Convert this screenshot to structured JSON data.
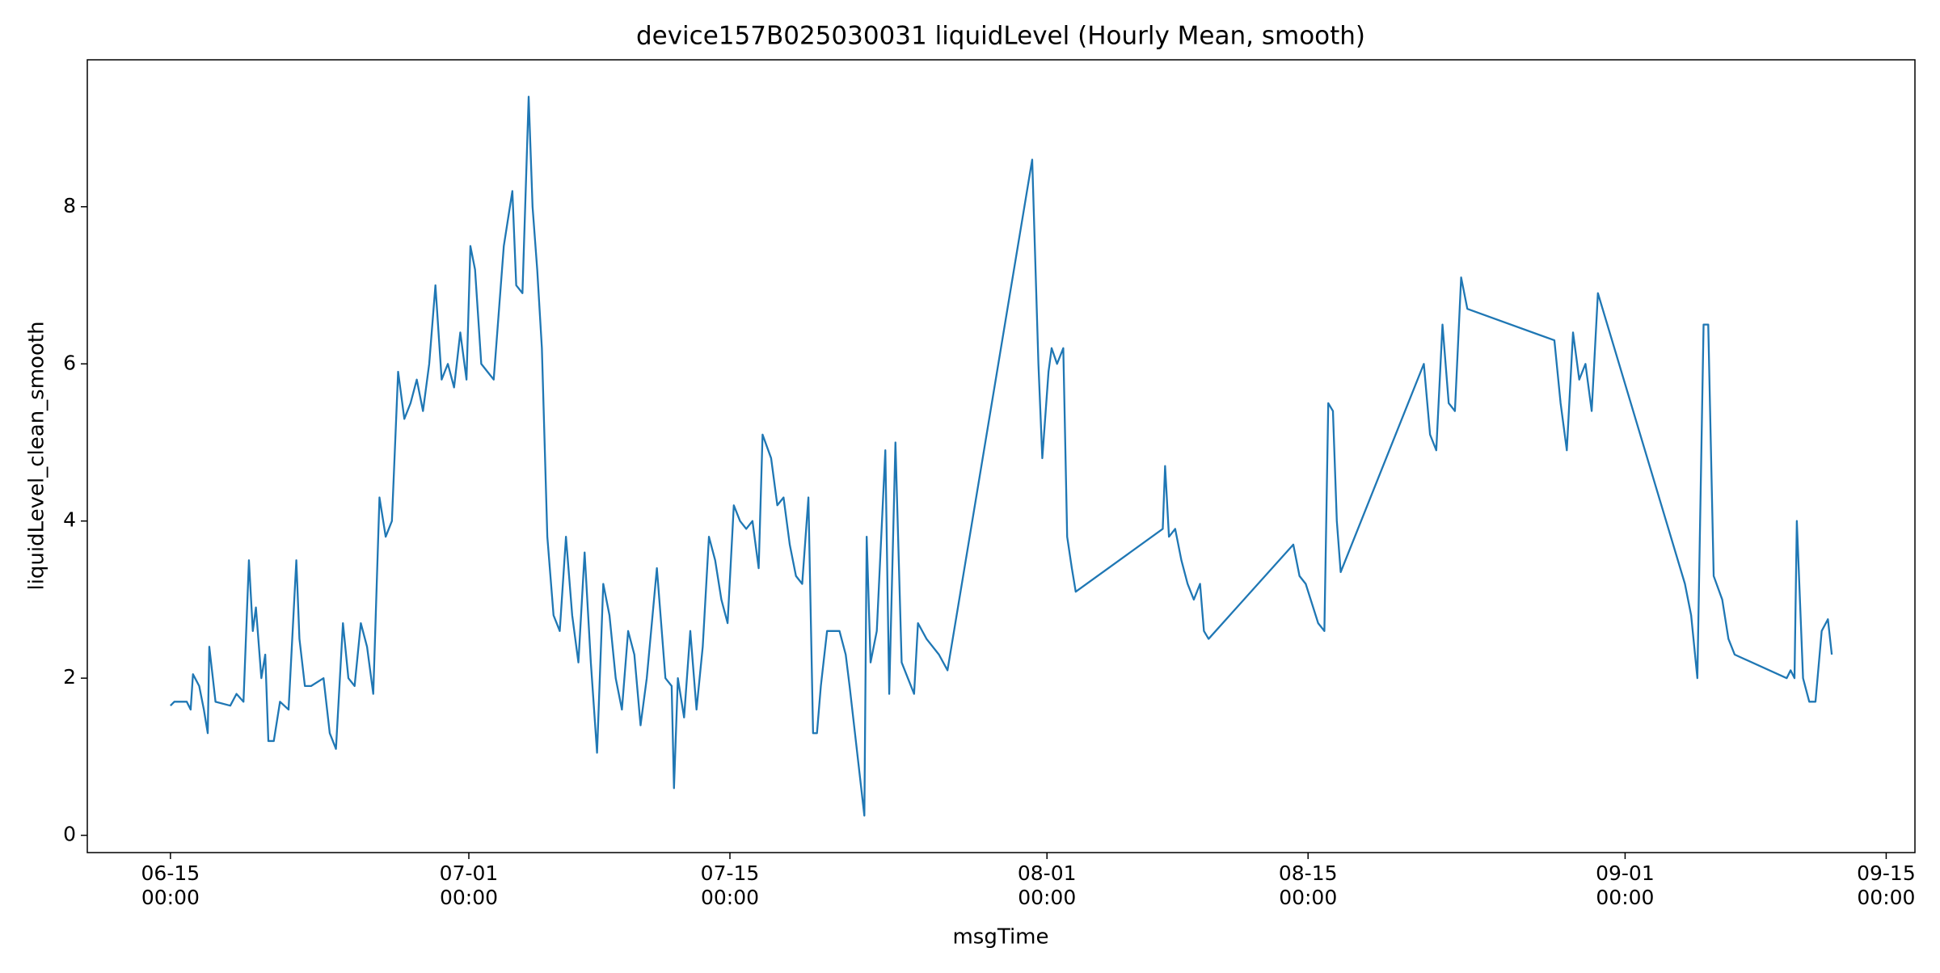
{
  "chart_data": {
    "type": "line",
    "title": "device157B025030031 liquidLevel (Hourly Mean, smooth)",
    "x_label": "msgTime",
    "y_label": "liquidLevel_clean_smooth",
    "color": "#1f77b4",
    "grid": false,
    "xlim": [
      "06-10 13:00",
      "09-16 13:00"
    ],
    "xticks": [
      "06-15 00:00",
      "07-01 00:00",
      "07-15 00:00",
      "08-01 00:00",
      "08-15 00:00",
      "09-01 00:00",
      "09-15 00:00"
    ],
    "ylim": [
      -0.22,
      9.87
    ],
    "yticks": [
      0,
      2,
      4,
      6,
      8
    ],
    "x": [
      "06-15 00:00",
      "06-15 05:00",
      "06-15 21:00",
      "06-16 02:00",
      "06-16 05:00",
      "06-16 13:00",
      "06-16 19:00",
      "06-17 00:00",
      "06-17 02:00",
      "06-17 10:00",
      "06-18 05:00",
      "06-18 13:00",
      "06-18 22:00",
      "06-19 05:00",
      "06-19 10:00",
      "06-19 14:00",
      "06-19 21:00",
      "06-20 02:00",
      "06-20 06:00",
      "06-20 13:00",
      "06-20 21:00",
      "06-21 08:00",
      "06-21 18:00",
      "06-21 22:00",
      "06-22 05:00",
      "06-22 13:00",
      "06-23 05:00",
      "06-23 13:00",
      "06-23 21:00",
      "06-24 06:00",
      "06-24 13:00",
      "06-24 21:00",
      "06-25 05:00",
      "06-25 13:00",
      "06-25 21:00",
      "06-26 05:00",
      "06-26 13:00",
      "06-26 21:00",
      "06-27 05:00",
      "06-27 13:00",
      "06-27 21:00",
      "06-28 05:00",
      "06-28 13:00",
      "06-28 21:00",
      "06-29 05:00",
      "06-29 13:00",
      "06-29 21:00",
      "06-30 05:00",
      "06-30 13:00",
      "06-30 21:00",
      "07-01 02:00",
      "07-01 08:00",
      "07-01 16:00",
      "07-02 00:00",
      "07-02 08:00",
      "07-02 21:00",
      "07-03 08:00",
      "07-03 13:00",
      "07-03 21:00",
      "07-04 05:00",
      "07-04 10:00",
      "07-04 16:00",
      "07-04 22:00",
      "07-05 05:00",
      "07-05 13:00",
      "07-05 21:00",
      "07-06 05:00",
      "07-06 13:00",
      "07-06 21:00",
      "07-07 05:00",
      "07-07 13:00",
      "07-07 21:00",
      "07-08 05:00",
      "07-08 13:00",
      "07-08 21:00",
      "07-09 05:00",
      "07-09 13:00",
      "07-09 21:00",
      "07-10 05:00",
      "07-10 13:00",
      "07-11 02:00",
      "07-11 13:00",
      "07-11 21:00",
      "07-12 00:00",
      "07-12 05:00",
      "07-12 13:00",
      "07-12 21:00",
      "07-13 05:00",
      "07-13 13:00",
      "07-13 21:00",
      "07-14 05:00",
      "07-14 13:00",
      "07-14 21:00",
      "07-15 05:00",
      "07-15 13:00",
      "07-15 21:00",
      "07-16 05:00",
      "07-16 13:00",
      "07-16 18:00",
      "07-17 05:00",
      "07-17 13:00",
      "07-17 21:00",
      "07-18 05:00",
      "07-18 13:00",
      "07-18 21:00",
      "07-19 05:00",
      "07-19 11:00",
      "07-19 16:00",
      "07-19 21:00",
      "07-20 05:00",
      "07-20 21:00",
      "07-21 05:00",
      "07-21 10:00",
      "07-22 05:00",
      "07-22 08:00",
      "07-22 13:00",
      "07-22 21:00",
      "07-23 08:00",
      "07-23 13:00",
      "07-23 21:00",
      "07-24 05:00",
      "07-24 13:00",
      "07-24 21:00",
      "07-25 02:00",
      "07-25 13:00",
      "07-26 05:00",
      "07-26 16:00",
      "07-31 05:00",
      "07-31 13:00",
      "07-31 18:00",
      "08-01 02:00",
      "08-01 06:00",
      "08-01 13:00",
      "08-01 21:00",
      "08-02 02:00",
      "08-02 08:00",
      "08-02 13:00",
      "08-07 05:00",
      "08-07 08:00",
      "08-07 13:00",
      "08-07 21:00",
      "08-08 05:00",
      "08-08 13:00",
      "08-08 21:00",
      "08-09 05:00",
      "08-09 10:00",
      "08-09 16:00",
      "08-14 05:00",
      "08-14 13:00",
      "08-14 21:00",
      "08-15 13:00",
      "08-15 21:00",
      "08-16 02:00",
      "08-16 08:00",
      "08-16 13:00",
      "08-16 18:00",
      "08-21 05:00",
      "08-21 13:00",
      "08-21 21:00",
      "08-22 05:00",
      "08-22 13:00",
      "08-22 21:00",
      "08-23 05:00",
      "08-23 13:00",
      "08-28 05:00",
      "08-28 13:00",
      "08-28 21:00",
      "08-29 05:00",
      "08-29 13:00",
      "08-29 21:00",
      "08-30 05:00",
      "08-30 13:00",
      "09-04 05:00",
      "09-04 13:00",
      "09-04 21:00",
      "09-05 05:00",
      "09-05 11:00",
      "09-05 18:00",
      "09-06 05:00",
      "09-06 13:00",
      "09-06 21:00",
      "09-09 16:00",
      "09-09 21:00",
      "09-10 02:00",
      "09-10 05:00",
      "09-10 13:00",
      "09-10 21:00",
      "09-11 05:00",
      "09-11 13:00",
      "09-11 21:00",
      "09-12 02:00"
    ],
    "values": [
      1.65,
      1.7,
      1.7,
      1.6,
      2.05,
      1.9,
      1.6,
      1.3,
      2.4,
      1.7,
      1.65,
      1.8,
      1.7,
      3.5,
      2.6,
      2.9,
      2.0,
      2.3,
      1.2,
      1.2,
      1.7,
      1.6,
      3.5,
      2.5,
      1.9,
      1.9,
      2.0,
      1.3,
      1.1,
      2.7,
      2.0,
      1.9,
      2.7,
      2.4,
      1.8,
      4.3,
      3.8,
      4.0,
      5.9,
      5.3,
      5.5,
      5.8,
      5.4,
      6.0,
      7.0,
      5.8,
      6.0,
      5.7,
      6.4,
      5.8,
      7.5,
      7.2,
      6.0,
      5.9,
      5.8,
      7.5,
      8.2,
      7.0,
      6.9,
      9.4,
      8.0,
      7.2,
      6.2,
      3.8,
      2.8,
      2.6,
      3.8,
      2.8,
      2.2,
      3.6,
      2.2,
      1.05,
      3.2,
      2.8,
      2.0,
      1.6,
      2.6,
      2.3,
      1.4,
      2.0,
      3.4,
      2.0,
      1.9,
      0.6,
      2.0,
      1.5,
      2.6,
      1.6,
      2.4,
      3.8,
      3.5,
      3.0,
      2.7,
      4.2,
      4.0,
      3.9,
      4.0,
      3.4,
      5.1,
      4.8,
      4.2,
      4.3,
      3.7,
      3.3,
      3.2,
      4.3,
      1.3,
      1.3,
      1.9,
      2.6,
      2.6,
      2.3,
      1.9,
      0.25,
      3.8,
      2.2,
      2.6,
      4.9,
      1.8,
      5.0,
      2.2,
      2.0,
      1.8,
      2.7,
      2.5,
      2.3,
      2.1,
      8.6,
      6.0,
      4.8,
      5.9,
      6.2,
      6.0,
      6.2,
      3.8,
      3.4,
      3.1,
      3.9,
      4.7,
      3.8,
      3.9,
      3.5,
      3.2,
      3.0,
      3.2,
      2.6,
      2.5,
      3.7,
      3.3,
      3.2,
      2.7,
      2.6,
      5.5,
      5.4,
      4.0,
      3.35,
      6.0,
      5.1,
      4.9,
      6.5,
      5.5,
      5.4,
      7.1,
      6.7,
      6.3,
      5.5,
      4.9,
      6.4,
      5.8,
      6.0,
      5.4,
      6.9,
      3.2,
      2.8,
      2.0,
      6.5,
      6.5,
      3.3,
      3.0,
      2.5,
      2.3,
      2.0,
      2.1,
      2.0,
      4.0,
      2.0,
      1.7,
      1.7,
      2.6,
      2.75,
      2.3
    ]
  }
}
